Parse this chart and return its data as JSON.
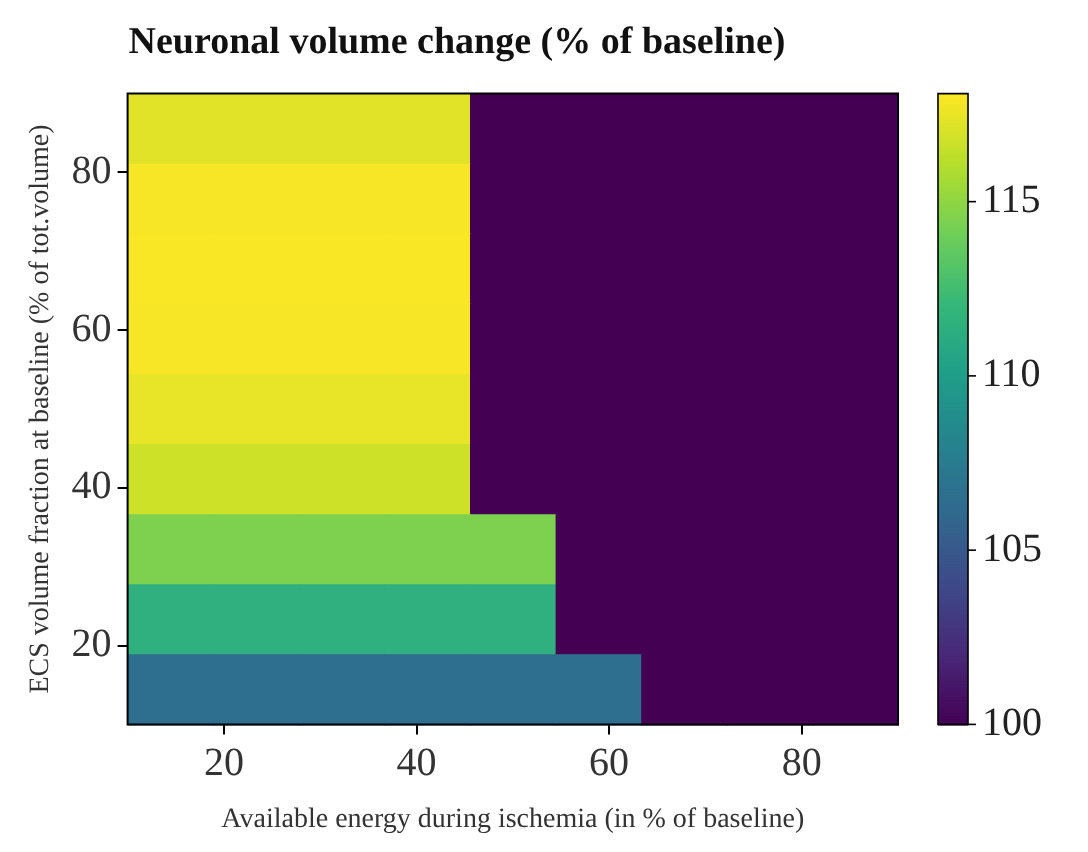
{
  "chart_data": {
    "type": "heatmap",
    "title": "Neuronal volume change (% of baseline)",
    "xlabel": "Available energy during ischemia (in % of baseline)",
    "ylabel": "ECS volume fraction at baseline (% of tot.volume)",
    "xlim": [
      10,
      90
    ],
    "xticks": [
      20,
      40,
      60,
      80
    ],
    "ylim": [
      10,
      90
    ],
    "yticks": [
      20,
      40,
      60,
      80
    ],
    "cells": [
      [
        117.3,
        117.3,
        117.3,
        117.3,
        100,
        100,
        100,
        100,
        100
      ],
      [
        117.9,
        117.9,
        117.9,
        117.9,
        100,
        100,
        100,
        100,
        100
      ],
      [
        118,
        118,
        118,
        118,
        100,
        100,
        100,
        100,
        100
      ],
      [
        117.9,
        117.9,
        117.9,
        117.9,
        100,
        100,
        100,
        100,
        100
      ],
      [
        117.5,
        117.5,
        117.5,
        117.5,
        100,
        100,
        100,
        100,
        100
      ],
      [
        116.8,
        116.8,
        116.8,
        116.8,
        100,
        100,
        100,
        100,
        100
      ],
      [
        114.5,
        114.5,
        114.5,
        114.5,
        114.5,
        100,
        100,
        100,
        100
      ],
      [
        111.5,
        111.5,
        111.5,
        111.5,
        111.5,
        100,
        100,
        100,
        100
      ],
      [
        106.5,
        106.5,
        106.5,
        106.5,
        106.5,
        106.5,
        100,
        100,
        100
      ]
    ],
    "clim": [
      100,
      118.1
    ],
    "cticks": [
      100,
      105,
      110,
      115
    ]
  }
}
